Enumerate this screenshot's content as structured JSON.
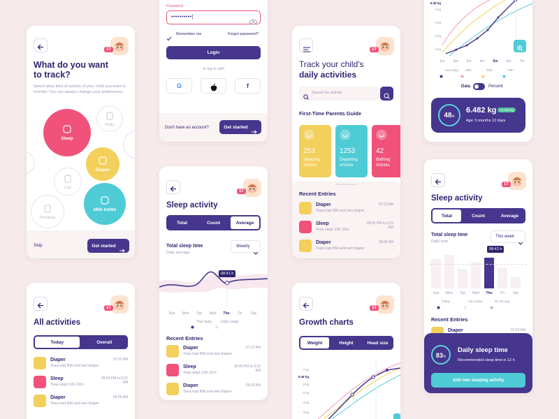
{
  "track": {
    "title": "What do you want to track?",
    "description": "Select what kind of activity of your child you want to monitor. You can always change your preferences",
    "badge": "17",
    "options": [
      "Sleep",
      "Potty",
      "Diaper",
      "Cup",
      "Milk bottle",
      "Pumping"
    ],
    "skip": "Skip",
    "cta": "Get started"
  },
  "login": {
    "password_label": "Password",
    "password": "••••••••••|",
    "remember": "Remember me",
    "forgot": "Forgot password?",
    "login": "Login",
    "or": "or log in with",
    "social": [
      "G",
      "f"
    ],
    "no_account": "Don't have an account?",
    "cta": "Get started"
  },
  "activities": {
    "title": "All activities",
    "badge": "17",
    "tabs": [
      "Today",
      "Overall"
    ],
    "entries": [
      {
        "title": "Diaper",
        "desc": "Tesa had BM and wet diaper",
        "time": "07:22 AM"
      },
      {
        "title": "Sleep",
        "desc": "Tesa slept 10h 22m",
        "time": "08:00 PM to 6:22 AM"
      },
      {
        "title": "Diaper",
        "desc": "Tesa had BM and wet diaper",
        "time": "09:05 AM"
      }
    ]
  },
  "sleep": {
    "title": "Sleep activity",
    "badge": "17",
    "tabs": [
      "Total",
      "Count",
      "Average"
    ],
    "chart_title": "Total sleep time",
    "chart_sub": "Daily average",
    "period": "Weekly",
    "tooltip": "08:41 h",
    "days": [
      "Sun",
      "Mon",
      "Tue",
      "Wed",
      "Thu",
      "Fri",
      "Sat"
    ],
    "legend": [
      "Your baby",
      "Daily range"
    ],
    "recent": "Recent Entries",
    "entries": [
      {
        "title": "Diaper",
        "desc": "Tesa had BM and wet diaper",
        "time": "07:22 AM"
      },
      {
        "title": "Sleep",
        "desc": "Tesa slept 10h 22m",
        "time": "08:00 PM to 6:22 AM"
      },
      {
        "title": "Diaper",
        "desc": "Tesa had BM and wet diaper",
        "time": "09:05 AM"
      }
    ]
  },
  "home": {
    "badge": "17",
    "title_line1": "Track your child's",
    "title_line2": "daily activities",
    "search": "Search for activity",
    "guide": "First-Time Parents Guide",
    "articles": [
      {
        "count": 253,
        "label": "Sleeping Articles"
      },
      {
        "count": 1253,
        "label": "Diapering Articles"
      },
      {
        "count": 42,
        "label": "Bathing Articles"
      }
    ],
    "recent": "Recent Entries",
    "entries": [
      {
        "title": "Diaper",
        "desc": "Tesa had BM and wet diaper",
        "time": "07:22 AM"
      },
      {
        "title": "Sleep",
        "desc": "Tesa slept 10h 22m",
        "time": "08:00 PM to 6:22 AM"
      },
      {
        "title": "Diaper",
        "desc": "Tesa had BM and wet diaper",
        "time": "09:05 AM"
      }
    ]
  },
  "growth": {
    "title": "Growth charts",
    "badge": "17",
    "tabs": [
      "Weight",
      "Height",
      "Head size"
    ],
    "yticks": [
      "7 kg",
      "6.48 kg",
      "6 kg",
      "5 kg",
      "4 kg",
      "3 kg"
    ]
  },
  "growth_detail": {
    "yticks": [
      "6.48 kg",
      "6 kg",
      "5 kg",
      "4 kg",
      "3 kg"
    ],
    "months": [
      "1m",
      "2m",
      "3m",
      "4m",
      "5m",
      "6m",
      "7m"
    ],
    "legend": [
      "Your baby",
      "25th",
      "50th",
      "75th"
    ],
    "toggle": [
      "Data",
      "Percent"
    ],
    "percentile": "48",
    "percentile_suffix": "th",
    "weight": "6.482 kg",
    "delta": "+1.234 kg",
    "age": "Age: 5 months 12 days"
  },
  "sleep_week": {
    "title": "Sleep activity",
    "badge": "17",
    "tabs": [
      "Total",
      "Count",
      "Average"
    ],
    "chart_title": "Total sleep time",
    "chart_sub": "Daily sum",
    "period": "This week",
    "tooltip": "08:41 h",
    "days": [
      "Sun",
      "Mon",
      "Tue",
      "Wed",
      "Thu",
      "Fri",
      "Sat"
    ],
    "legend": [
      "Today",
      "Your baby",
      "8h TM avg"
    ],
    "recent": "Recent Entries",
    "entry": {
      "title": "Diaper",
      "time": "07:22 AM"
    },
    "overlay": {
      "percent": "83",
      "suffix": "%",
      "title": "Daily sleep time",
      "desc": "Recommended sleep time is 12 h",
      "cta": "Add new sleeping activity"
    }
  }
}
